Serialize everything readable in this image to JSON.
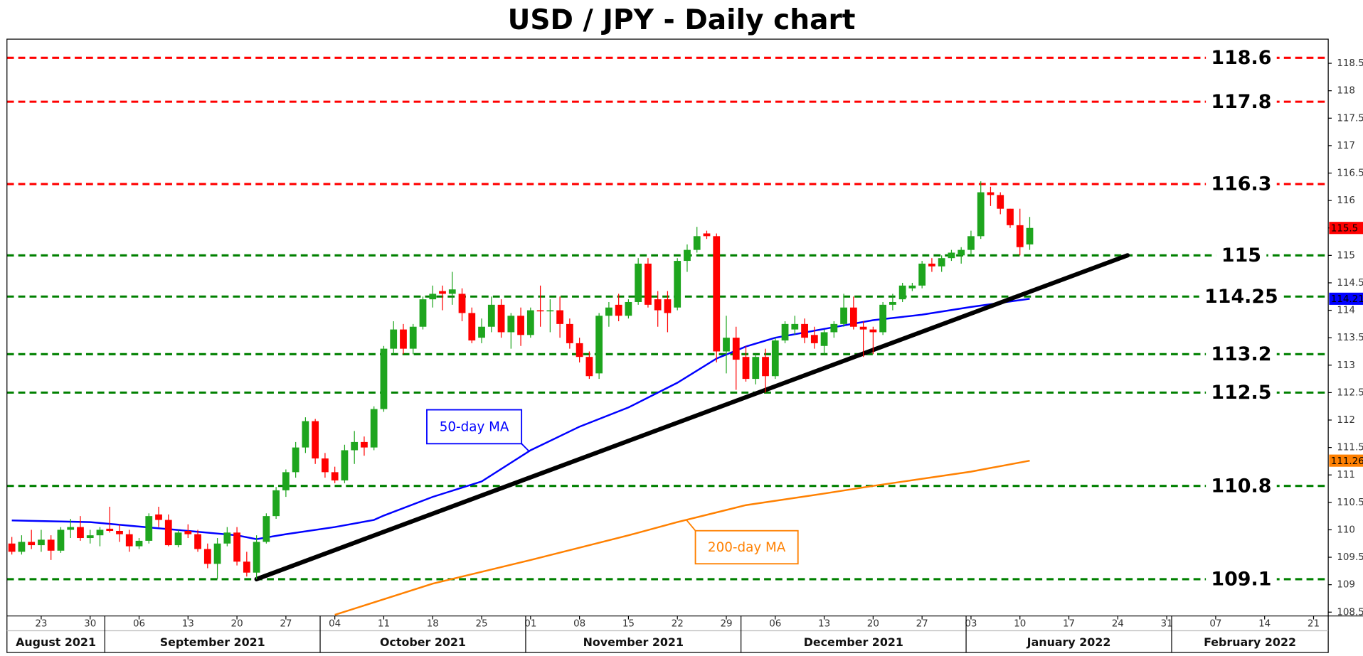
{
  "chart_data": {
    "type": "candlestick",
    "title": "USD / JPY - Daily chart",
    "up_color": "#1ea51e",
    "down_color": "#ff0000",
    "x": [
      "2021-08-18",
      "2021-08-19",
      "2021-08-20",
      "2021-08-23",
      "2021-08-24",
      "2021-08-25",
      "2021-08-26",
      "2021-08-27",
      "2021-08-30",
      "2021-08-31",
      "2021-09-01",
      "2021-09-02",
      "2021-09-03",
      "2021-09-06",
      "2021-09-07",
      "2021-09-08",
      "2021-09-09",
      "2021-09-10",
      "2021-09-13",
      "2021-09-14",
      "2021-09-15",
      "2021-09-16",
      "2021-09-17",
      "2021-09-20",
      "2021-09-21",
      "2021-09-22",
      "2021-09-23",
      "2021-09-24",
      "2021-09-27",
      "2021-09-28",
      "2021-09-29",
      "2021-09-30",
      "2021-10-01",
      "2021-10-04",
      "2021-10-05",
      "2021-10-06",
      "2021-10-07",
      "2021-10-08",
      "2021-10-11",
      "2021-10-12",
      "2021-10-13",
      "2021-10-14",
      "2021-10-15",
      "2021-10-18",
      "2021-10-19",
      "2021-10-20",
      "2021-10-21",
      "2021-10-22",
      "2021-10-25",
      "2021-10-26",
      "2021-10-27",
      "2021-10-28",
      "2021-10-29",
      "2021-11-01",
      "2021-11-02",
      "2021-11-03",
      "2021-11-04",
      "2021-11-05",
      "2021-11-08",
      "2021-11-09",
      "2021-11-10",
      "2021-11-11",
      "2021-11-12",
      "2021-11-15",
      "2021-11-16",
      "2021-11-17",
      "2021-11-18",
      "2021-11-19",
      "2021-11-22",
      "2021-11-23",
      "2021-11-24",
      "2021-11-25",
      "2021-11-26",
      "2021-11-29",
      "2021-11-30",
      "2021-12-01",
      "2021-12-02",
      "2021-12-03",
      "2021-12-06",
      "2021-12-07",
      "2021-12-08",
      "2021-12-09",
      "2021-12-10",
      "2021-12-13",
      "2021-12-14",
      "2021-12-15",
      "2021-12-16",
      "2021-12-17",
      "2021-12-20",
      "2021-12-21",
      "2021-12-22",
      "2021-12-23",
      "2021-12-24",
      "2021-12-27",
      "2021-12-28",
      "2021-12-29",
      "2021-12-30",
      "2021-12-31",
      "2022-01-03",
      "2022-01-04",
      "2022-01-05",
      "2022-01-06",
      "2022-01-07",
      "2022-01-10",
      "2022-01-11"
    ],
    "ohlc": [
      [
        109.75,
        109.87,
        109.55,
        109.6
      ],
      [
        109.6,
        109.9,
        109.55,
        109.78
      ],
      [
        109.78,
        110.0,
        109.65,
        109.72
      ],
      [
        109.72,
        110.0,
        109.6,
        109.82
      ],
      [
        109.82,
        109.9,
        109.45,
        109.62
      ],
      [
        109.62,
        110.05,
        109.58,
        110.0
      ],
      [
        110.0,
        110.2,
        109.85,
        110.05
      ],
      [
        110.05,
        110.25,
        109.8,
        109.85
      ],
      [
        109.85,
        110.0,
        109.75,
        109.9
      ],
      [
        109.9,
        110.05,
        109.7,
        110.0
      ],
      [
        110.02,
        110.42,
        109.95,
        109.98
      ],
      [
        109.98,
        110.1,
        109.78,
        109.92
      ],
      [
        109.92,
        110.0,
        109.6,
        109.7
      ],
      [
        109.7,
        109.85,
        109.65,
        109.8
      ],
      [
        109.8,
        110.3,
        109.75,
        110.25
      ],
      [
        110.28,
        110.42,
        110.05,
        110.18
      ],
      [
        110.18,
        110.28,
        109.7,
        109.72
      ],
      [
        109.72,
        110.0,
        109.68,
        109.95
      ],
      [
        109.98,
        110.1,
        109.85,
        109.92
      ],
      [
        109.92,
        110.0,
        109.6,
        109.65
      ],
      [
        109.65,
        109.75,
        109.3,
        109.38
      ],
      [
        109.38,
        109.85,
        109.1,
        109.75
      ],
      [
        109.75,
        110.05,
        109.7,
        109.95
      ],
      [
        109.95,
        110.05,
        109.35,
        109.42
      ],
      [
        109.42,
        109.6,
        109.15,
        109.22
      ],
      [
        109.22,
        109.9,
        109.1,
        109.78
      ],
      [
        109.78,
        110.3,
        109.75,
        110.25
      ],
      [
        110.25,
        110.78,
        110.2,
        110.72
      ],
      [
        110.72,
        111.1,
        110.6,
        111.05
      ],
      [
        111.05,
        111.6,
        110.95,
        111.5
      ],
      [
        111.5,
        112.05,
        111.4,
        111.98
      ],
      [
        111.98,
        112.02,
        111.2,
        111.3
      ],
      [
        111.3,
        111.4,
        110.95,
        111.05
      ],
      [
        111.05,
        111.15,
        110.85,
        110.9
      ],
      [
        110.9,
        111.55,
        110.85,
        111.45
      ],
      [
        111.45,
        111.8,
        111.2,
        111.6
      ],
      [
        111.6,
        111.7,
        111.35,
        111.5
      ],
      [
        111.5,
        112.25,
        111.45,
        112.2
      ],
      [
        112.2,
        113.35,
        112.15,
        113.3
      ],
      [
        113.3,
        113.8,
        113.2,
        113.65
      ],
      [
        113.65,
        113.75,
        113.2,
        113.3
      ],
      [
        113.3,
        113.75,
        113.2,
        113.7
      ],
      [
        113.7,
        114.25,
        113.65,
        114.2
      ],
      [
        114.2,
        114.45,
        114.05,
        114.3
      ],
      [
        114.35,
        114.45,
        114.0,
        114.3
      ],
      [
        114.3,
        114.7,
        114.1,
        114.38
      ],
      [
        114.3,
        114.4,
        113.8,
        113.95
      ],
      [
        113.95,
        114.05,
        113.4,
        113.45
      ],
      [
        113.5,
        113.85,
        113.4,
        113.7
      ],
      [
        113.7,
        114.25,
        113.6,
        114.1
      ],
      [
        114.1,
        114.2,
        113.5,
        113.6
      ],
      [
        113.6,
        113.95,
        113.3,
        113.9
      ],
      [
        113.9,
        114.05,
        113.35,
        113.55
      ],
      [
        113.55,
        114.05,
        113.5,
        114.0
      ],
      [
        114.0,
        114.45,
        113.7,
        113.98
      ],
      [
        113.98,
        114.2,
        113.6,
        114.0
      ],
      [
        114.0,
        114.25,
        113.5,
        113.75
      ],
      [
        113.75,
        113.85,
        113.3,
        113.4
      ],
      [
        113.4,
        113.5,
        113.05,
        113.15
      ],
      [
        113.15,
        113.25,
        112.75,
        112.8
      ],
      [
        112.85,
        113.95,
        112.75,
        113.9
      ],
      [
        113.9,
        114.15,
        113.7,
        114.05
      ],
      [
        114.1,
        114.3,
        113.8,
        113.9
      ],
      [
        113.9,
        114.2,
        113.85,
        114.15
      ],
      [
        114.15,
        114.95,
        114.1,
        114.85
      ],
      [
        114.85,
        114.95,
        114.05,
        114.1
      ],
      [
        114.2,
        114.35,
        113.7,
        114.0
      ],
      [
        114.2,
        114.35,
        113.6,
        113.95
      ],
      [
        114.05,
        114.95,
        114.0,
        114.9
      ],
      [
        114.9,
        115.2,
        114.7,
        115.1
      ],
      [
        115.1,
        115.52,
        115.05,
        115.35
      ],
      [
        115.4,
        115.45,
        115.3,
        115.35
      ],
      [
        115.35,
        115.4,
        113.05,
        113.25
      ],
      [
        113.25,
        113.9,
        112.85,
        113.5
      ],
      [
        113.5,
        113.7,
        112.55,
        113.1
      ],
      [
        113.15,
        113.35,
        112.7,
        112.75
      ],
      [
        112.75,
        113.2,
        112.65,
        113.15
      ],
      [
        113.15,
        113.3,
        112.5,
        112.8
      ],
      [
        112.8,
        113.5,
        112.75,
        113.45
      ],
      [
        113.45,
        113.8,
        113.4,
        113.75
      ],
      [
        113.65,
        113.9,
        113.55,
        113.75
      ],
      [
        113.75,
        113.85,
        113.4,
        113.5
      ],
      [
        113.55,
        113.7,
        113.3,
        113.4
      ],
      [
        113.35,
        113.65,
        113.2,
        113.6
      ],
      [
        113.6,
        113.8,
        113.5,
        113.75
      ],
      [
        113.75,
        114.3,
        113.7,
        114.05
      ],
      [
        114.05,
        114.25,
        113.65,
        113.7
      ],
      [
        113.7,
        113.8,
        113.15,
        113.65
      ],
      [
        113.65,
        113.7,
        113.2,
        113.6
      ],
      [
        113.6,
        114.15,
        113.55,
        114.1
      ],
      [
        114.1,
        114.3,
        114.0,
        114.15
      ],
      [
        114.2,
        114.5,
        114.15,
        114.45
      ],
      [
        114.4,
        114.5,
        114.35,
        114.45
      ],
      [
        114.45,
        114.9,
        114.4,
        114.85
      ],
      [
        114.85,
        114.95,
        114.7,
        114.8
      ],
      [
        114.8,
        115.0,
        114.7,
        114.95
      ],
      [
        114.95,
        115.1,
        114.9,
        115.05
      ],
      [
        115.0,
        115.15,
        114.85,
        115.1
      ],
      [
        115.1,
        115.45,
        115.0,
        115.35
      ],
      [
        115.35,
        116.35,
        115.3,
        116.15
      ],
      [
        116.15,
        116.25,
        115.9,
        116.1
      ],
      [
        116.1,
        116.15,
        115.75,
        115.85
      ],
      [
        115.85,
        115.85,
        115.5,
        115.55
      ],
      [
        115.55,
        115.85,
        115.0,
        115.15
      ],
      [
        115.2,
        115.7,
        115.1,
        115.5
      ]
    ],
    "lines": [
      {
        "name": "50-day MA",
        "color": "#0000ff",
        "x": [
          "2021-08-18",
          "2021-08-30",
          "2021-09-06",
          "2021-09-13",
          "2021-09-20",
          "2021-09-22",
          "2021-09-27",
          "2021-10-04",
          "2021-10-08",
          "2021-10-11",
          "2021-10-18",
          "2021-10-25",
          "2021-11-01",
          "2021-11-08",
          "2021-11-15",
          "2021-11-22",
          "2021-11-26",
          "2021-12-01",
          "2021-12-06",
          "2021-12-13",
          "2021-12-20",
          "2021-12-27",
          "2022-01-03",
          "2022-01-11"
        ],
        "values": [
          110.17,
          110.14,
          110.06,
          109.98,
          109.9,
          109.83,
          109.92,
          110.05,
          110.18,
          110.26,
          110.6,
          110.88,
          111.45,
          111.88,
          112.23,
          112.68,
          113.12,
          113.34,
          113.5,
          113.66,
          113.82,
          113.92,
          114.06,
          114.21
        ]
      },
      {
        "name": "200-day MA",
        "color": "#ff8000",
        "x": [
          "2021-10-04",
          "2021-10-18",
          "2021-11-01",
          "2021-11-15",
          "2021-11-22",
          "2021-12-01",
          "2021-12-13",
          "2021-12-20",
          "2022-01-03",
          "2022-01-11"
        ],
        "values": [
          108.45,
          109.02,
          109.45,
          109.9,
          110.14,
          110.45,
          110.66,
          110.8,
          111.06,
          111.26
        ]
      }
    ],
    "trendline": {
      "color": "#000000",
      "x": [
        "2021-09-22",
        "2022-01-25"
      ],
      "values": [
        109.1,
        115.0
      ]
    },
    "levels": [
      {
        "value": 118.6,
        "color": "#ff0000"
      },
      {
        "value": 117.8,
        "color": "#ff0000"
      },
      {
        "value": 116.3,
        "color": "#ff0000"
      },
      {
        "value": 115,
        "color": "#008000"
      },
      {
        "value": 114.25,
        "color": "#008000"
      },
      {
        "value": 113.2,
        "color": "#008000"
      },
      {
        "value": 112.5,
        "color": "#008000"
      },
      {
        "value": 110.8,
        "color": "#008000"
      },
      {
        "value": 109.1,
        "color": "#008000"
      }
    ],
    "price_tags": [
      {
        "value": 115.5,
        "color": "#ff0000"
      },
      {
        "value": 114.21,
        "color": "#0000ff"
      },
      {
        "value": 111.26,
        "color": "#ff8000"
      }
    ],
    "xlim": [
      "2021-08-18",
      "2022-02-22"
    ],
    "xticks": [
      {
        "value": "2021-08-23",
        "label": "23"
      },
      {
        "value": "2021-08-30",
        "label": "30"
      },
      {
        "value": "2021-09-06",
        "label": "06"
      },
      {
        "value": "2021-09-13",
        "label": "13"
      },
      {
        "value": "2021-09-20",
        "label": "20"
      },
      {
        "value": "2021-09-27",
        "label": "27"
      },
      {
        "value": "2021-10-04",
        "label": "04"
      },
      {
        "value": "2021-10-11",
        "label": "11"
      },
      {
        "value": "2021-10-18",
        "label": "18"
      },
      {
        "value": "2021-10-25",
        "label": "25"
      },
      {
        "value": "2021-11-01",
        "label": "01"
      },
      {
        "value": "2021-11-08",
        "label": "08"
      },
      {
        "value": "2021-11-15",
        "label": "15"
      },
      {
        "value": "2021-11-22",
        "label": "22"
      },
      {
        "value": "2021-11-29",
        "label": "29"
      },
      {
        "value": "2021-12-06",
        "label": "06"
      },
      {
        "value": "2021-12-13",
        "label": "13"
      },
      {
        "value": "2021-12-20",
        "label": "20"
      },
      {
        "value": "2021-12-27",
        "label": "27"
      },
      {
        "value": "2022-01-03",
        "label": "03"
      },
      {
        "value": "2022-01-10",
        "label": "10"
      },
      {
        "value": "2022-01-17",
        "label": "17"
      },
      {
        "value": "2022-01-24",
        "label": "24"
      },
      {
        "value": "2022-01-31",
        "label": "31"
      },
      {
        "value": "2022-02-07",
        "label": "07"
      },
      {
        "value": "2022-02-14",
        "label": "14"
      },
      {
        "value": "2022-02-21",
        "label": "21"
      }
    ],
    "months": [
      {
        "value": "2021-08",
        "label": "August 2021"
      },
      {
        "value": "2021-09",
        "label": "September 2021"
      },
      {
        "value": "2021-10",
        "label": "October 2021"
      },
      {
        "value": "2021-11",
        "label": "November 2021"
      },
      {
        "value": "2021-12",
        "label": "December 2021"
      },
      {
        "value": "2022-01",
        "label": "January 2022"
      },
      {
        "value": "2022-02",
        "label": "February 2022"
      }
    ],
    "ylim": [
      108.43,
      118.94
    ],
    "yticks": [
      108.5,
      109,
      109.5,
      110,
      110.5,
      111,
      111.5,
      112,
      112.5,
      113,
      113.5,
      114,
      114.5,
      115,
      115.5,
      116,
      116.5,
      117,
      117.5,
      118,
      118.5
    ]
  }
}
